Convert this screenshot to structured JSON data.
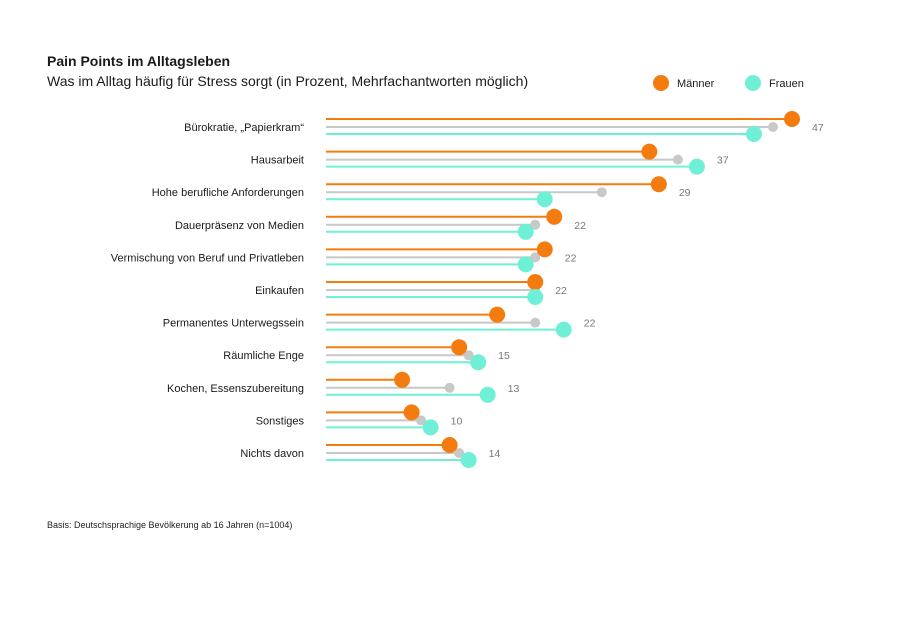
{
  "title": "Pain Points im Alltagsleben",
  "subtitle": "Was im Alltag häufig für Stress sorgt (in Prozent, Mehrfachantworten möglich)",
  "source": "Basis: Deutschsprachige Bevölkerung ab 16 Jahren (n=1004)",
  "colors": {
    "maenner": "#f47c0e",
    "gesamt": "#c8c8c8",
    "frauen": "#6ff0d6"
  },
  "chart_data": {
    "type": "lollipop",
    "categories": [
      "Bürokratie, „Papierkram“",
      "Hausarbeit",
      "Hohe berufliche Anforderungen",
      "Dauerpräsenz von Medien",
      "Vermischung von Beruf und Privatleben",
      "Einkaufen",
      "Permanentes Unterwegssein",
      "Räumliche Enge",
      "Kochen, Essenszubereitung",
      "Sonstiges",
      "Nichts davon"
    ],
    "series": [
      {
        "name": "Männer",
        "values": [
          49,
          34,
          35,
          24,
          23,
          22,
          18,
          14,
          8,
          9,
          13
        ]
      },
      {
        "values": [
          47,
          37,
          29,
          22,
          22,
          22,
          22,
          15,
          13,
          10,
          14
        ]
      },
      {
        "name": "Frauen",
        "values": [
          45,
          39,
          23,
          21,
          21,
          22,
          25,
          16,
          17,
          11,
          15
        ]
      }
    ],
    "value_labels": [
      "47",
      "37",
      "29",
      "22",
      "22",
      "22",
      "22",
      "15",
      "13",
      "10",
      "14"
    ],
    "xlim": [
      0,
      49
    ],
    "legend_position": "top-right",
    "grid": false
  }
}
